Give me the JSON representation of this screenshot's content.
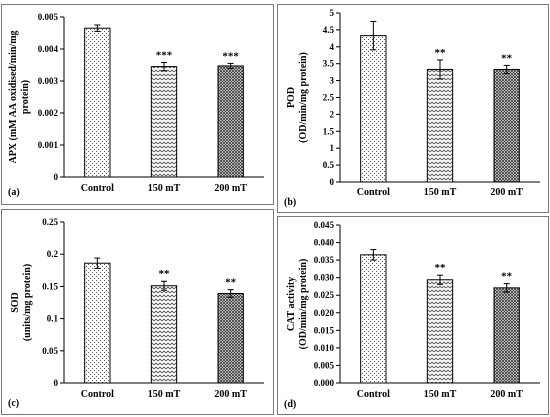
{
  "chart_data": [
    {
      "type": "bar",
      "panel_label": "(a)",
      "categories": [
        "Control",
        "150 mT",
        "200 mT"
      ],
      "values": [
        0.00465,
        0.00345,
        0.00347
      ],
      "errors": [
        0.0001,
        0.00013,
        8e-05
      ],
      "significance": [
        "",
        "***",
        "***"
      ],
      "patterns": [
        "dots",
        "weave",
        "cross"
      ],
      "ylabel_lines": [
        "APX (mM AA oxidised/min/mg",
        "protein)"
      ],
      "xlabel": "",
      "ylim": [
        0,
        0.005
      ],
      "yticks": [
        0,
        0.001,
        0.002,
        0.003,
        0.004,
        0.005
      ],
      "yticklabels": [
        "0",
        "0.001",
        "0.002",
        "0.003",
        "0.004",
        "0.005"
      ],
      "grid": false
    },
    {
      "type": "bar",
      "panel_label": "(b)",
      "categories": [
        "Control",
        "150 mT",
        "200 mT"
      ],
      "values": [
        4.33,
        3.33,
        3.33
      ],
      "errors": [
        0.42,
        0.28,
        0.12
      ],
      "significance": [
        "",
        "**",
        "**"
      ],
      "patterns": [
        "dots",
        "weave",
        "cross"
      ],
      "ylabel_lines": [
        "POD",
        "(OD/min/mg protein)"
      ],
      "xlabel": "",
      "ylim": [
        0,
        5
      ],
      "yticks": [
        0,
        0.5,
        1,
        1.5,
        2,
        2.5,
        3,
        3.5,
        4,
        4.5,
        5
      ],
      "yticklabels": [
        "0",
        "0.5",
        "1",
        "1.5",
        "2",
        "2.5",
        "3",
        "3.5",
        "4",
        "4.5",
        "5"
      ],
      "grid": false
    },
    {
      "type": "bar",
      "panel_label": "(c)",
      "categories": [
        "Control",
        "150 mT",
        "200 mT"
      ],
      "values": [
        0.186,
        0.151,
        0.139
      ],
      "errors": [
        0.008,
        0.007,
        0.006
      ],
      "significance": [
        "",
        "**",
        "**"
      ],
      "patterns": [
        "dots",
        "weave",
        "cross"
      ],
      "ylabel_lines": [
        "SOD",
        "(units/mg protein)"
      ],
      "xlabel": "",
      "ylim": [
        0,
        0.25
      ],
      "yticks": [
        0,
        0.05,
        0.1,
        0.15,
        0.2,
        0.25
      ],
      "yticklabels": [
        "0",
        "0.05",
        "0.1",
        "0.15",
        "0.2",
        "0.25"
      ],
      "grid": false
    },
    {
      "type": "bar",
      "panel_label": "(d)",
      "categories": [
        "Control",
        "150 mT",
        "200 mT"
      ],
      "values": [
        0.0365,
        0.0294,
        0.0271
      ],
      "errors": [
        0.0015,
        0.0013,
        0.0012
      ],
      "significance": [
        "",
        "**",
        "**"
      ],
      "patterns": [
        "dots",
        "weave",
        "cross"
      ],
      "ylabel_lines": [
        "CAT activity",
        "(OD/min/mg protein)"
      ],
      "xlabel": "",
      "ylim": [
        0,
        0.045
      ],
      "yticks": [
        0,
        0.005,
        0.01,
        0.015,
        0.02,
        0.025,
        0.03,
        0.035,
        0.04,
        0.045
      ],
      "yticklabels": [
        "0.000",
        "0.005",
        "0.010",
        "0.015",
        "0.020",
        "0.025",
        "0.030",
        "0.035",
        "0.040",
        "0.045"
      ],
      "grid": false
    }
  ]
}
